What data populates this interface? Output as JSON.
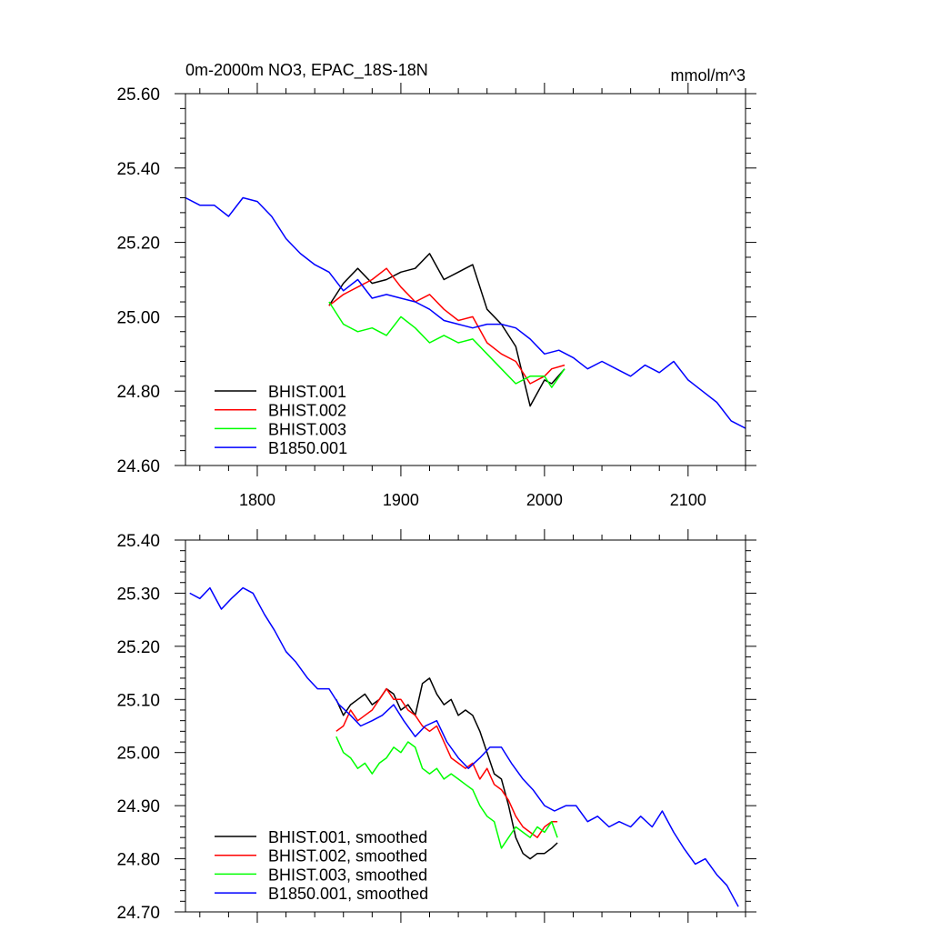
{
  "title_left": "0m-2000m NO3, EPAC_18S-18N",
  "title_right": "mmol/m^3",
  "chart_data": [
    {
      "type": "line",
      "xlim": [
        1750,
        2140
      ],
      "ylim": [
        24.6,
        25.6
      ],
      "xticks": [
        1800,
        1900,
        2000,
        2100
      ],
      "xtick_labels": [
        "1800",
        "1900",
        "2000",
        "2100"
      ],
      "yticks": [
        24.6,
        24.8,
        25.0,
        25.2,
        25.4,
        25.6
      ],
      "ytick_labels": [
        "24.60",
        "24.80",
        "25.00",
        "25.20",
        "25.40",
        "25.60"
      ],
      "legend": "bottom-left",
      "series": [
        {
          "name": "BHIST.001",
          "color": "#000000",
          "x": [
            1850,
            1860,
            1870,
            1880,
            1890,
            1900,
            1910,
            1920,
            1930,
            1940,
            1950,
            1960,
            1970,
            1980,
            1990,
            2000,
            2005,
            2014
          ],
          "y": [
            25.03,
            25.09,
            25.13,
            25.09,
            25.1,
            25.12,
            25.13,
            25.17,
            25.1,
            25.12,
            25.14,
            25.02,
            24.98,
            24.92,
            24.76,
            24.83,
            24.82,
            24.86
          ]
        },
        {
          "name": "BHIST.002",
          "color": "#ff0000",
          "x": [
            1850,
            1860,
            1870,
            1880,
            1890,
            1900,
            1910,
            1920,
            1930,
            1940,
            1950,
            1960,
            1970,
            1980,
            1990,
            2000,
            2005,
            2014
          ],
          "y": [
            25.03,
            25.06,
            25.08,
            25.1,
            25.13,
            25.08,
            25.04,
            25.06,
            25.02,
            24.99,
            25.0,
            24.93,
            24.9,
            24.88,
            24.82,
            24.84,
            24.86,
            24.87
          ]
        },
        {
          "name": "BHIST.003",
          "color": "#00ff00",
          "x": [
            1850,
            1860,
            1870,
            1880,
            1890,
            1900,
            1910,
            1920,
            1930,
            1940,
            1950,
            1960,
            1970,
            1980,
            1990,
            2000,
            2005,
            2014
          ],
          "y": [
            25.04,
            24.98,
            24.96,
            24.97,
            24.95,
            25.0,
            24.97,
            24.93,
            24.95,
            24.93,
            24.94,
            24.9,
            24.86,
            24.82,
            24.84,
            24.84,
            24.81,
            24.86
          ]
        },
        {
          "name": "B1850.001",
          "color": "#0000ff",
          "x": [
            1750,
            1760,
            1770,
            1780,
            1790,
            1800,
            1810,
            1820,
            1830,
            1840,
            1850,
            1860,
            1870,
            1880,
            1890,
            1900,
            1910,
            1920,
            1930,
            1940,
            1950,
            1960,
            1970,
            1980,
            1990,
            2000,
            2010,
            2020,
            2030,
            2040,
            2050,
            2060,
            2070,
            2080,
            2090,
            2100,
            2110,
            2120,
            2130,
            2140
          ],
          "y": [
            25.32,
            25.3,
            25.3,
            25.27,
            25.32,
            25.31,
            25.27,
            25.21,
            25.17,
            25.14,
            25.12,
            25.07,
            25.1,
            25.05,
            25.06,
            25.05,
            25.04,
            25.02,
            24.99,
            24.98,
            24.97,
            24.98,
            24.98,
            24.97,
            24.94,
            24.9,
            24.91,
            24.89,
            24.86,
            24.88,
            24.86,
            24.84,
            24.87,
            24.85,
            24.88,
            24.83,
            24.8,
            24.77,
            24.72,
            24.7
          ]
        }
      ]
    },
    {
      "type": "line",
      "xlim": [
        1750,
        2140
      ],
      "ylim": [
        24.7,
        25.4
      ],
      "xticks": [
        1800,
        1900,
        2000,
        2100
      ],
      "yticks": [
        24.7,
        24.8,
        24.9,
        25.0,
        25.1,
        25.2,
        25.3,
        25.4
      ],
      "ytick_labels": [
        "24.70",
        "24.80",
        "24.90",
        "25.00",
        "25.10",
        "25.20",
        "25.30",
        "25.40"
      ],
      "legend": "bottom-left",
      "series": [
        {
          "name": "BHIST.001, smoothed",
          "color": "#000000",
          "x": [
            1855,
            1860,
            1865,
            1870,
            1875,
            1880,
            1885,
            1890,
            1895,
            1900,
            1905,
            1910,
            1915,
            1920,
            1925,
            1930,
            1935,
            1940,
            1945,
            1950,
            1955,
            1960,
            1965,
            1970,
            1975,
            1980,
            1985,
            1990,
            1995,
            2000,
            2005,
            2009
          ],
          "y": [
            25.1,
            25.07,
            25.09,
            25.1,
            25.11,
            25.09,
            25.1,
            25.12,
            25.11,
            25.08,
            25.09,
            25.07,
            25.13,
            25.14,
            25.11,
            25.09,
            25.1,
            25.07,
            25.08,
            25.07,
            25.04,
            25.0,
            24.96,
            24.95,
            24.9,
            24.84,
            24.81,
            24.8,
            24.81,
            24.81,
            24.82,
            24.83
          ]
        },
        {
          "name": "BHIST.002, smoothed",
          "color": "#ff0000",
          "x": [
            1855,
            1860,
            1865,
            1870,
            1875,
            1880,
            1885,
            1890,
            1895,
            1900,
            1905,
            1910,
            1915,
            1920,
            1925,
            1930,
            1935,
            1940,
            1945,
            1950,
            1955,
            1960,
            1965,
            1970,
            1975,
            1980,
            1985,
            1990,
            1995,
            2000,
            2005,
            2009
          ],
          "y": [
            25.04,
            25.05,
            25.08,
            25.06,
            25.07,
            25.08,
            25.1,
            25.12,
            25.1,
            25.1,
            25.08,
            25.07,
            25.05,
            25.04,
            25.05,
            25.02,
            24.99,
            24.98,
            24.97,
            24.98,
            24.95,
            24.97,
            24.94,
            24.93,
            24.91,
            24.88,
            24.86,
            24.85,
            24.84,
            24.86,
            24.87,
            24.87
          ]
        },
        {
          "name": "BHIST.003, smoothed",
          "color": "#00ff00",
          "x": [
            1855,
            1860,
            1865,
            1870,
            1875,
            1880,
            1885,
            1890,
            1895,
            1900,
            1905,
            1910,
            1915,
            1920,
            1925,
            1930,
            1935,
            1940,
            1945,
            1950,
            1955,
            1960,
            1965,
            1970,
            1975,
            1980,
            1985,
            1990,
            1995,
            2000,
            2005,
            2009
          ],
          "y": [
            25.03,
            25.0,
            24.99,
            24.97,
            24.98,
            24.96,
            24.98,
            24.99,
            25.01,
            25.0,
            25.02,
            25.01,
            24.97,
            24.96,
            24.97,
            24.95,
            24.96,
            24.95,
            24.94,
            24.93,
            24.9,
            24.88,
            24.87,
            24.82,
            24.84,
            24.86,
            24.85,
            24.84,
            24.86,
            24.85,
            24.87,
            24.84
          ]
        },
        {
          "name": "B1850.001, smoothed",
          "color": "#0000ff",
          "x": [
            1753,
            1760,
            1767,
            1775,
            1782,
            1790,
            1797,
            1805,
            1812,
            1820,
            1827,
            1835,
            1842,
            1850,
            1857,
            1865,
            1872,
            1880,
            1887,
            1895,
            1902,
            1910,
            1917,
            1925,
            1932,
            1940,
            1947,
            1955,
            1962,
            1970,
            1977,
            1985,
            1992,
            2000,
            2007,
            2015,
            2022,
            2030,
            2037,
            2045,
            2052,
            2060,
            2067,
            2075,
            2082,
            2090,
            2097,
            2105,
            2112,
            2120,
            2127,
            2135
          ],
          "y": [
            25.3,
            25.29,
            25.31,
            25.27,
            25.29,
            25.31,
            25.3,
            25.26,
            25.23,
            25.19,
            25.17,
            25.14,
            25.12,
            25.12,
            25.09,
            25.07,
            25.05,
            25.06,
            25.07,
            25.09,
            25.06,
            25.03,
            25.05,
            25.06,
            25.02,
            24.99,
            24.97,
            24.99,
            25.01,
            25.01,
            24.98,
            24.95,
            24.93,
            24.9,
            24.89,
            24.9,
            24.9,
            24.87,
            24.88,
            24.86,
            24.87,
            24.86,
            24.88,
            24.86,
            24.89,
            24.85,
            24.82,
            24.79,
            24.8,
            24.77,
            24.75,
            24.71
          ]
        }
      ]
    }
  ]
}
